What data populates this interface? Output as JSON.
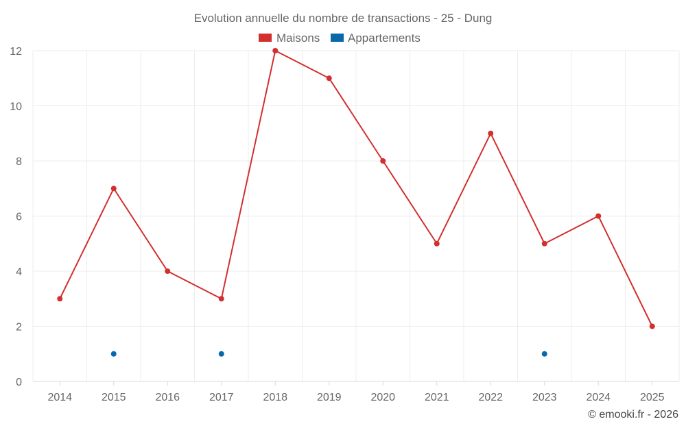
{
  "chart_data": {
    "type": "line",
    "title": "Evolution annuelle du nombre de transactions - 25 - Dung",
    "categories": [
      "2014",
      "2015",
      "2016",
      "2017",
      "2018",
      "2019",
      "2020",
      "2021",
      "2022",
      "2023",
      "2024",
      "2025"
    ],
    "series": [
      {
        "name": "Maisons",
        "color": "#d32f2f",
        "values": [
          3,
          7,
          4,
          3,
          12,
          11,
          8,
          5,
          9,
          5,
          6,
          2
        ]
      },
      {
        "name": "Appartements",
        "color": "#0868ac",
        "values": [
          null,
          1,
          null,
          1,
          null,
          null,
          null,
          null,
          null,
          1,
          null,
          null
        ]
      }
    ],
    "ylim": [
      0,
      12
    ],
    "yticks": [
      0,
      2,
      4,
      6,
      8,
      10,
      12
    ],
    "xlabel": "",
    "ylabel": "",
    "grid": true,
    "legend_position": "top-center"
  },
  "credit": "© emooki.fr - 2026"
}
